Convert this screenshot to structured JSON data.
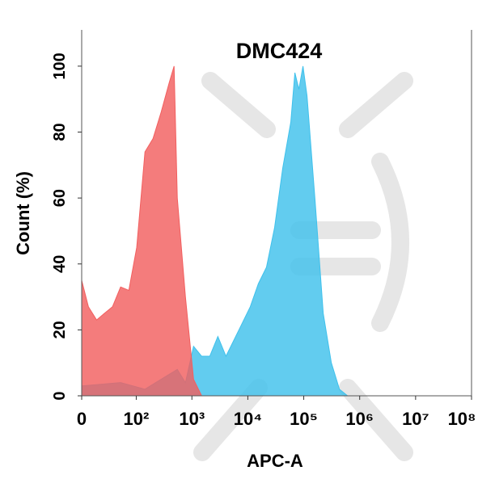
{
  "chart_data": {
    "type": "area",
    "title": "DMC424",
    "x_label": "APC-A",
    "y_label": "Count  (%)",
    "xscale": "biexponential",
    "xlim": [
      0,
      100000000
    ],
    "ylim": [
      0,
      111
    ],
    "xticks": [
      0,
      {
        "value": 100,
        "label": "10²"
      },
      {
        "value": 1000,
        "label": "10³"
      },
      {
        "value": 10000,
        "label": "10⁴"
      },
      {
        "value": 100000,
        "label": "10⁵"
      },
      {
        "value": 1000000,
        "label": "10⁶"
      },
      {
        "value": 10000000,
        "label": "10⁷"
      },
      {
        "value": 100000000,
        "label": "10⁸"
      }
    ],
    "yticks": [
      0,
      20,
      40,
      60,
      80,
      100
    ],
    "series": [
      {
        "color": "#3fc1ec",
        "x": [
          0,
          51,
          144,
          281,
          548,
          766,
          1070,
          1494,
          2087,
          2912,
          4066,
          5680,
          7930,
          11050,
          15430,
          21550,
          30090,
          42010,
          58670,
          69400,
          81920,
          96900,
          114400,
          159700,
          223000,
          311400,
          434800,
          607200
        ],
        "values": [
          3,
          4,
          2,
          5,
          8,
          4,
          15,
          12,
          12,
          18,
          12,
          17,
          22,
          27,
          34,
          39,
          51,
          69,
          83,
          98,
          93,
          100,
          91,
          59,
          25,
          10,
          2,
          0
        ]
      },
      {
        "color": "#f25f5f",
        "x": [
          0,
          6,
          14,
          23,
          35,
          51,
          73,
          102,
          144,
          201,
          281,
          393,
          480,
          548,
          766,
          1070,
          1494
        ],
        "values": [
          35,
          27,
          23,
          25,
          27,
          33,
          32,
          45,
          74,
          78,
          86,
          95,
          100,
          60,
          30,
          5,
          0
        ]
      }
    ]
  }
}
